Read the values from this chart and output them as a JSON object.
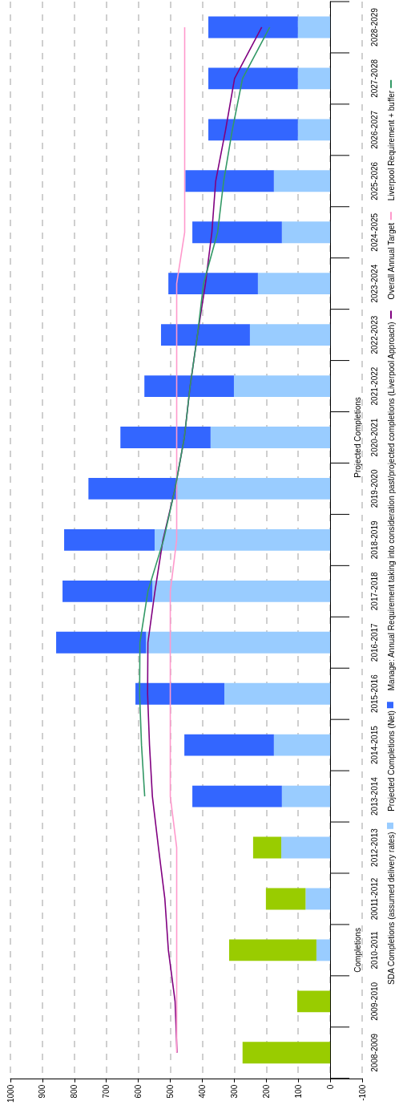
{
  "chart_data": {
    "type": "bar",
    "stacked": true,
    "orientation": "horizontal",
    "categories": [
      "2028-2029",
      "2027-2028",
      "2026-2027",
      "2025-2026",
      "2024-2025",
      "2023-2024",
      "2022-2023",
      "2021-2022",
      "2020-2021",
      "2019-2020",
      "2018-2019",
      "2017-2018",
      "2016-2017",
      "2015-2016",
      "2014-2015",
      "2013-2014",
      "2012-2013",
      "20011-2012",
      "2010-2011",
      "2009-2010",
      "2008-2009"
    ],
    "series": [
      {
        "name": "SDA Completions (assumed delivery rates)",
        "color": "#99ccff",
        "values": [
          101,
          101,
          101,
          176,
          151,
          226,
          251,
          301,
          374,
          478,
          549,
          556,
          576,
          331,
          176,
          151,
          153,
          77,
          43,
          0,
          0
        ]
      },
      {
        "color": "#99cc00",
        "values": [
          null,
          null,
          null,
          null,
          null,
          null,
          null,
          null,
          null,
          null,
          null,
          null,
          null,
          null,
          null,
          null,
          88,
          124,
          273,
          103,
          274
        ]
      },
      {
        "name": "Projected Completions (Net)",
        "color": "#3366ff",
        "values": [
          280,
          280,
          280,
          277,
          280,
          280,
          278,
          280,
          282,
          278,
          283,
          281,
          281,
          278,
          280,
          280,
          null,
          null,
          null,
          null,
          null
        ]
      },
      {
        "type": "line",
        "name": "Manage: Annual Requirement taking into consideration past/projected completions (Liverpool Approach)",
        "color": "#800080",
        "values": [
          214,
          299,
          327,
          358,
          370,
          390,
          415,
          438,
          456,
          485,
          523,
          548,
          570,
          571,
          565,
          556,
          537,
          517,
          506,
          485,
          479
        ]
      },
      {
        "type": "line",
        "name": "Overall Annual Target",
        "color": "#ff99cc",
        "values": [
          455,
          455,
          455,
          455,
          455,
          480,
          480,
          480,
          480,
          480,
          480,
          500,
          500,
          500,
          500,
          500,
          480,
          480,
          480,
          480,
          480
        ]
      },
      {
        "type": "line",
        "name": "Liverpool Requirement + buffer",
        "color": "#339966",
        "values": [
          189,
          274,
          306,
          333,
          352,
          396,
          415,
          438,
          456,
          485,
          521,
          570,
          595,
          596,
          590,
          580,
          null,
          null,
          null,
          null,
          null
        ]
      }
    ],
    "xlim": [
      1000,
      -100
    ],
    "xticks": [
      1000,
      900,
      800,
      700,
      600,
      500,
      400,
      300,
      200,
      100,
      0,
      -100
    ],
    "grid": "x",
    "legend": "right",
    "marker": "none",
    "annotations": [
      "Completions",
      "Projected Completions"
    ]
  }
}
